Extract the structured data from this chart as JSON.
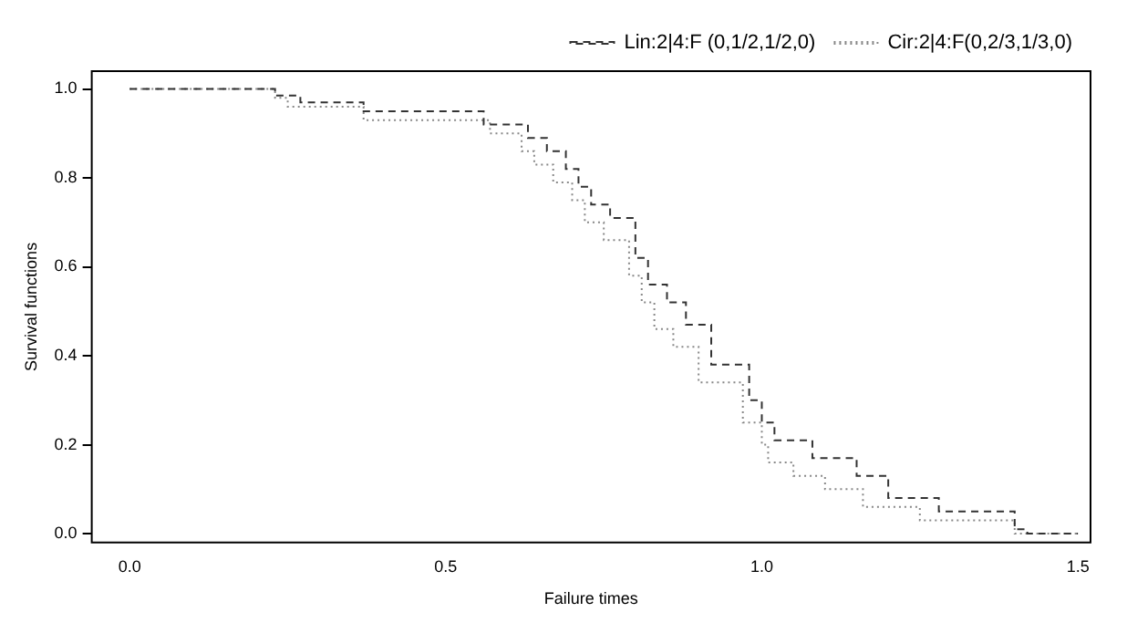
{
  "chart_data": {
    "type": "step",
    "xlabel": "Failure times",
    "ylabel": "Survival functions",
    "xlim": [
      -0.06,
      1.52
    ],
    "xticks": [
      {
        "value": 0,
        "label": "0.0"
      },
      0.5,
      {
        "value": 1,
        "label": "1.0"
      },
      1.5
    ],
    "ylim": [
      -0.02,
      1.04
    ],
    "yticks": [
      {
        "value": 0,
        "label": "0.0"
      },
      0.2,
      0.4,
      0.6,
      0.8,
      {
        "value": 1,
        "label": "1.0"
      }
    ],
    "grid": false,
    "legend": "top right",
    "marker": "none",
    "series": [
      {
        "name": "Lin:2|4:F (0,1/2,1/2,0)",
        "color": "#333333",
        "line_style": "dashed",
        "x": [
          0,
          0.23,
          0.27,
          0.37,
          0.56,
          0.63,
          0.66,
          0.69,
          0.71,
          0.73,
          0.76,
          0.8,
          0.82,
          0.85,
          0.88,
          0.92,
          0.98,
          1.0,
          1.02,
          1.08,
          1.15,
          1.2,
          1.28,
          1.4,
          1.42,
          1.5
        ],
        "values": [
          1.0,
          0.985,
          0.97,
          0.95,
          0.92,
          0.89,
          0.86,
          0.82,
          0.78,
          0.74,
          0.71,
          0.62,
          0.56,
          0.52,
          0.47,
          0.38,
          0.3,
          0.25,
          0.21,
          0.17,
          0.13,
          0.08,
          0.05,
          0.01,
          0.0,
          0.0
        ]
      },
      {
        "name": "Cir:2|4:F(0,2/3,1/3,0)",
        "color": "#888888",
        "line_style": "dotted",
        "x": [
          0,
          0.23,
          0.25,
          0.37,
          0.57,
          0.62,
          0.64,
          0.67,
          0.7,
          0.72,
          0.75,
          0.79,
          0.81,
          0.83,
          0.86,
          0.9,
          0.97,
          1.0,
          1.01,
          1.05,
          1.1,
          1.16,
          1.25,
          1.4,
          1.5
        ],
        "values": [
          1.0,
          0.98,
          0.96,
          0.93,
          0.9,
          0.86,
          0.83,
          0.79,
          0.75,
          0.7,
          0.66,
          0.58,
          0.52,
          0.46,
          0.42,
          0.34,
          0.25,
          0.2,
          0.16,
          0.13,
          0.1,
          0.06,
          0.03,
          0.0,
          0.0
        ]
      }
    ]
  }
}
